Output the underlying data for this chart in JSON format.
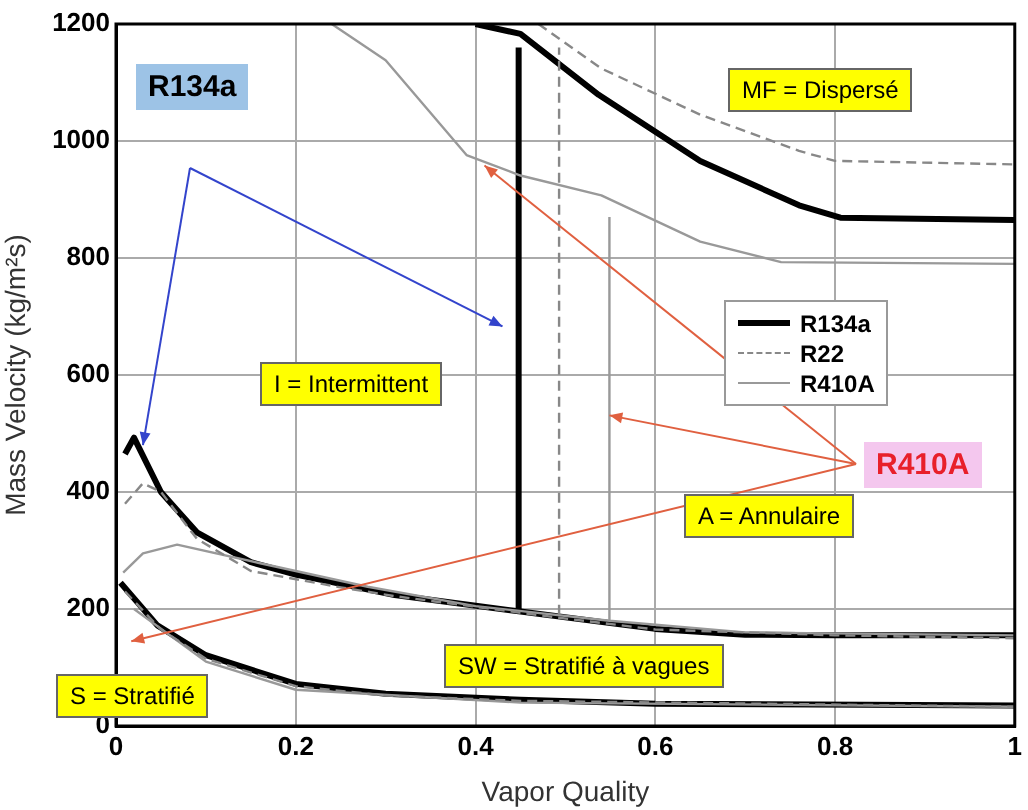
{
  "chart_data": {
    "type": "line",
    "xlabel": "Vapor Quality",
    "ylabel": "Mass Velocity (kg/m²s)",
    "xlim": [
      0,
      1
    ],
    "xticks": [
      0,
      0.2,
      0.4,
      0.6,
      0.8,
      1
    ],
    "ylim": [
      0,
      1200
    ],
    "yticks": [
      0,
      200,
      400,
      600,
      800,
      1000,
      1200
    ],
    "grid": true,
    "legend": "center right",
    "marker": "none",
    "annotations": [
      "R134a",
      "MF = Dispersé",
      "I = Intermittent",
      "A = Annulaire",
      "SW = Stratifié à vagues",
      "S = Stratifié",
      {
        "text": "R410A",
        "x": 0.549,
        "y": 531
      }
    ],
    "series": [
      {
        "name": "R134a",
        "color": "#000000",
        "line_style": "solid",
        "x": [
          0.01,
          0.02,
          0.05,
          0.09,
          0.15,
          0.2,
          0.31,
          0.448,
          0.6,
          0.7,
          0.8,
          1
        ],
        "values": [
          465,
          493,
          400,
          331,
          280,
          259,
          224,
          196,
          166,
          156,
          155,
          155
        ]
      },
      {
        "color": "#000000",
        "line_style": "solid",
        "x": [
          0.448,
          0.448
        ],
        "values": [
          196,
          1160
        ]
      },
      {
        "color": "#000000",
        "line_style": "solid",
        "x": [
          0.4,
          0.45,
          0.537,
          0.65,
          0.76,
          0.806,
          1
        ],
        "values": [
          1200,
          1183,
          1079,
          966,
          890,
          869,
          865
        ]
      },
      {
        "color": "#000000",
        "line_style": "solid",
        "x": [
          0.005,
          0.046,
          0.1,
          0.2,
          0.3,
          0.45,
          0.6,
          1
        ],
        "values": [
          245,
          172,
          121,
          72,
          55,
          45,
          38,
          35
        ]
      },
      {
        "name": "R22",
        "color": "#888888",
        "line_style": "dashed",
        "x": [
          0.01,
          0.03,
          0.05,
          0.09,
          0.15,
          0.25,
          0.31,
          0.493,
          0.6,
          0.8,
          1
        ],
        "values": [
          380,
          415,
          400,
          320,
          265,
          237,
          222,
          185,
          165,
          155,
          150
        ]
      },
      {
        "color": "#888888",
        "line_style": "dashed",
        "x": [
          0.493,
          0.493
        ],
        "values": [
          190,
          1160
        ]
      },
      {
        "color": "#888888",
        "line_style": "dashed",
        "x": [
          0.47,
          0.54,
          0.65,
          0.76,
          0.8,
          1
        ],
        "values": [
          1200,
          1124,
          1045,
          983,
          966,
          960
        ]
      },
      {
        "color": "#888888",
        "line_style": "dashed",
        "x": [
          0.01,
          0.05,
          0.1,
          0.2,
          0.3,
          0.45,
          1
        ],
        "values": [
          230,
          165,
          115,
          68,
          52,
          43,
          33
        ]
      },
      {
        "name": "R410A",
        "color": "#999999",
        "line_style": "solid",
        "x": [
          0.008,
          0.03,
          0.068,
          0.158,
          0.28,
          0.4,
          0.549,
          0.7,
          1
        ],
        "values": [
          262,
          295,
          310,
          279,
          238,
          205,
          180,
          160,
          155
        ]
      },
      {
        "color": "#999999",
        "line_style": "solid",
        "x": [
          0.549,
          0.549
        ],
        "values": [
          180,
          870
        ]
      },
      {
        "color": "#999999",
        "line_style": "solid",
        "x": [
          0.24,
          0.3,
          0.39,
          0.45,
          0.54,
          0.65,
          0.74,
          1
        ],
        "values": [
          1200,
          1138,
          976,
          941,
          907,
          828,
          793,
          790
        ]
      },
      {
        "color": "#999999",
        "line_style": "solid",
        "x": [
          0.02,
          0.1,
          0.2,
          0.45,
          1
        ],
        "values": [
          200,
          110,
          62,
          40,
          33
        ]
      }
    ]
  }
}
